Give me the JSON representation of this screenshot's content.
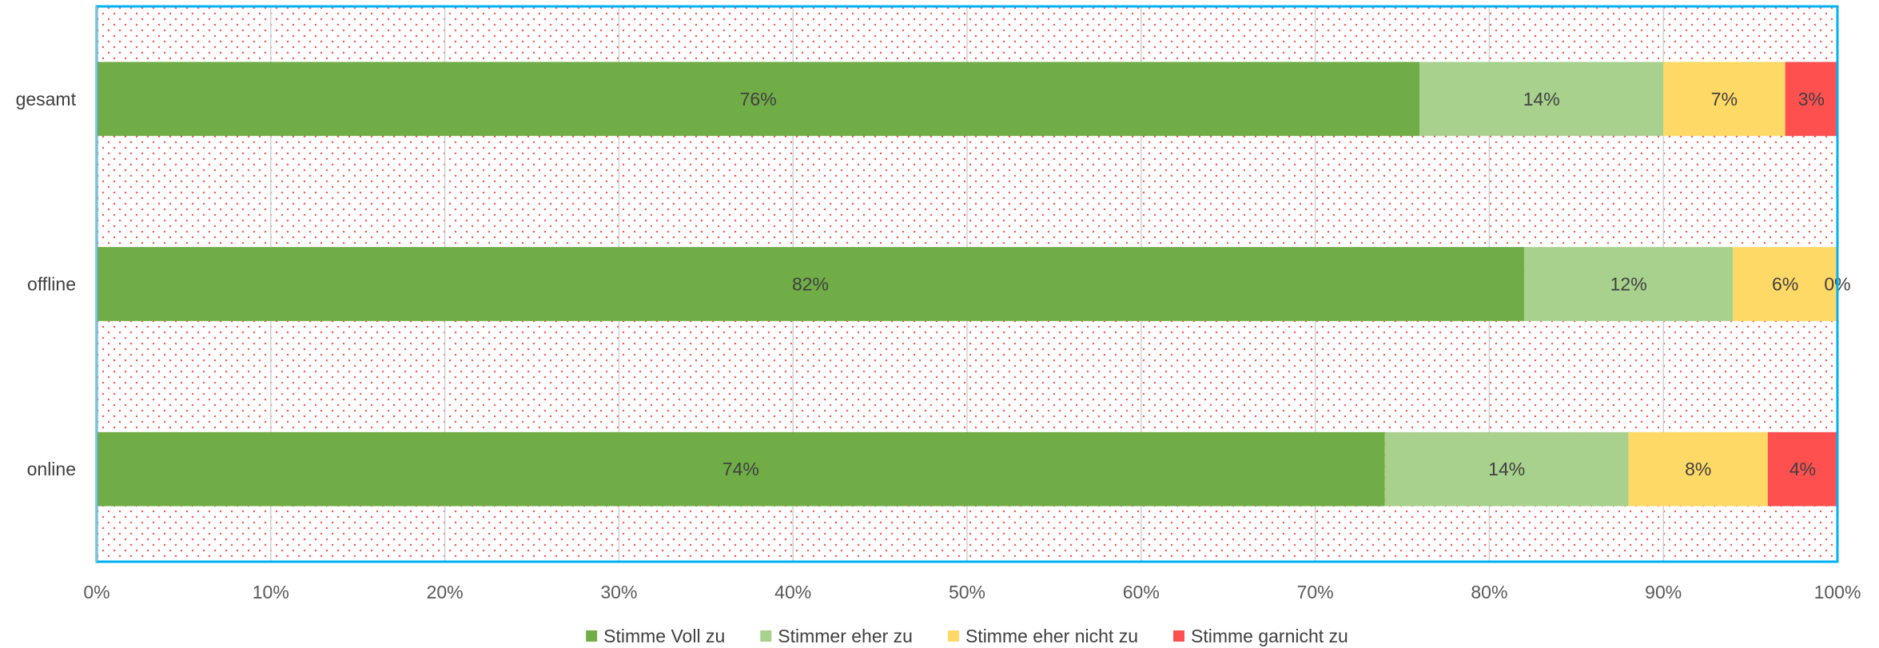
{
  "chart_data": {
    "type": "bar",
    "orientation": "horizontal",
    "stacked": "percent",
    "title": "",
    "xlabel": "",
    "ylabel": "",
    "xlim": [
      0,
      100
    ],
    "x_ticks": [
      "0%",
      "10%",
      "20%",
      "30%",
      "40%",
      "50%",
      "60%",
      "70%",
      "80%",
      "90%",
      "100%"
    ],
    "categories": [
      "gesamt",
      "offline",
      "online"
    ],
    "series": [
      {
        "name": "Stimme Voll zu",
        "color": "#70ad47",
        "values": [
          76,
          82,
          74
        ],
        "labels": [
          "76%",
          "82%",
          "74%"
        ]
      },
      {
        "name": "Stimmer eher zu",
        "color": "#a9d18e",
        "values": [
          14,
          12,
          14
        ],
        "labels": [
          "14%",
          "12%",
          "14%"
        ]
      },
      {
        "name": "Stimme eher nicht zu",
        "color": "#ffd966",
        "values": [
          7,
          6,
          8
        ],
        "labels": [
          "7%",
          "6%",
          "8%"
        ]
      },
      {
        "name": "Stimme garnicht zu",
        "color": "#ff5050",
        "values": [
          3,
          0,
          4
        ],
        "labels": [
          "3%",
          "0%",
          "4%"
        ]
      }
    ],
    "grid": true,
    "legend_position": "bottom",
    "plot_background": "red dotted pattern",
    "plot_border_color": "#00b0f0"
  }
}
